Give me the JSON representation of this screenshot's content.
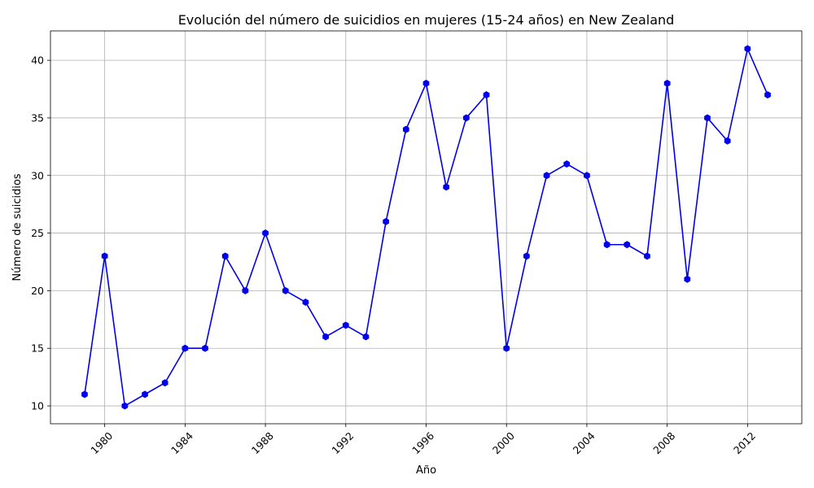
{
  "chart_data": {
    "type": "line",
    "title": "Evolución del número de suicidios en mujeres (15-24 años) en New Zealand",
    "xlabel": "Año",
    "ylabel": "Número de suicidios",
    "xlim": [
      1977.3,
      2014.7
    ],
    "ylim": [
      8.45,
      42.55
    ],
    "xticks": [
      1980,
      1984,
      1988,
      1992,
      1996,
      2000,
      2004,
      2008,
      2012
    ],
    "yticks": [
      10,
      15,
      20,
      25,
      30,
      35,
      40
    ],
    "grid": true,
    "line_color": "#0000ee",
    "marker": "hexagon",
    "x": [
      1979,
      1980,
      1981,
      1982,
      1983,
      1984,
      1985,
      1986,
      1987,
      1988,
      1989,
      1990,
      1991,
      1992,
      1993,
      1994,
      1995,
      1996,
      1997,
      1998,
      1999,
      2000,
      2001,
      2002,
      2003,
      2004,
      2005,
      2006,
      2007,
      2008,
      2009,
      2010,
      2011,
      2012,
      2013
    ],
    "values": [
      11,
      23,
      10,
      11,
      12,
      15,
      15,
      23,
      20,
      25,
      20,
      19,
      16,
      17,
      16,
      26,
      34,
      38,
      29,
      35,
      37,
      15,
      23,
      30,
      31,
      30,
      24,
      24,
      23,
      38,
      21,
      35,
      33,
      41,
      37
    ]
  }
}
